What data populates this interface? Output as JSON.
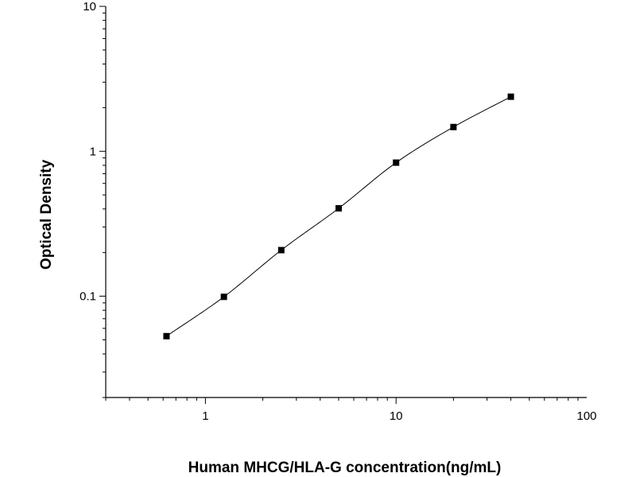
{
  "chart_data": {
    "type": "scatter",
    "title": "",
    "xlabel": "Human MHCG/HLA-G concentration(ng/mL)",
    "ylabel": "Optical Density",
    "x_scale": "log",
    "y_scale": "log",
    "xlim": [
      0.3,
      100
    ],
    "ylim": [
      0.02,
      10
    ],
    "x_ticks": [
      {
        "value": 1,
        "label": "1"
      },
      {
        "value": 10,
        "label": "10"
      },
      {
        "value": 100,
        "label": "100"
      }
    ],
    "y_ticks": [
      {
        "value": 0.1,
        "label": "0.1"
      },
      {
        "value": 1,
        "label": "1"
      },
      {
        "value": 10,
        "label": "10"
      }
    ],
    "grid": false,
    "series": [
      {
        "marker": "square",
        "color": "#000000",
        "x": [
          0.625,
          1.25,
          2.5,
          5,
          10,
          20,
          40
        ],
        "y": [
          0.053,
          0.099,
          0.208,
          0.404,
          0.835,
          1.47,
          2.38
        ]
      }
    ],
    "fit_curve": true
  }
}
